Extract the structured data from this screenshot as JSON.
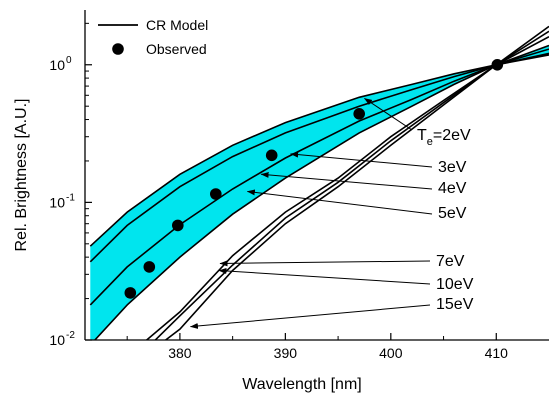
{
  "chart_data": {
    "type": "line",
    "title": "",
    "xlabel": "Wavelength [nm]",
    "ylabel": "Rel. Brightness [A.U.]",
    "xlim": [
      371,
      415
    ],
    "ylim": [
      0.01,
      2.5
    ],
    "yscale": "log",
    "grid": false,
    "legend_position": "top-left",
    "x_ticks": [
      380,
      390,
      400,
      410
    ],
    "x_tick_labels": [
      "380",
      "390",
      "400",
      "410"
    ],
    "y_ticks": [
      0.01,
      0.1,
      1
    ],
    "y_tick_labels": [
      {
        "base": "10",
        "exp": "-2"
      },
      {
        "base": "10",
        "exp": "-1"
      },
      {
        "base": "10",
        "exp": "0"
      }
    ],
    "legend": [
      {
        "label": "CR Model",
        "kind": "line"
      },
      {
        "label": "Observed",
        "kind": "marker"
      }
    ],
    "band": {
      "color": "#00e5ee",
      "upper_curve": "2eV",
      "lower_curve": "5eV"
    },
    "series": [
      {
        "te": "2eV",
        "x": [
          371.5,
          375,
          380,
          385,
          390,
          397,
          402,
          406,
          410,
          415
        ],
        "y": [
          0.048,
          0.085,
          0.16,
          0.26,
          0.38,
          0.58,
          0.72,
          0.86,
          1.0,
          1.18
        ]
      },
      {
        "te": "3eV",
        "x": [
          371.5,
          375,
          380,
          385,
          390,
          397,
          402,
          406,
          410,
          415
        ],
        "y": [
          0.037,
          0.068,
          0.13,
          0.215,
          0.32,
          0.5,
          0.66,
          0.82,
          1.0,
          1.21
        ]
      },
      {
        "te": "4eV",
        "x": [
          371.5,
          375,
          380,
          385,
          390,
          397,
          402,
          406,
          410,
          415
        ],
        "y": [
          0.018,
          0.034,
          0.069,
          0.125,
          0.21,
          0.39,
          0.56,
          0.76,
          1.0,
          1.3
        ]
      },
      {
        "te": "5eV",
        "x": [
          371.5,
          375,
          380,
          385,
          390,
          397,
          402,
          406,
          410,
          415
        ],
        "y": [
          0.0092,
          0.018,
          0.04,
          0.082,
          0.15,
          0.32,
          0.5,
          0.72,
          1.0,
          1.38
        ]
      },
      {
        "te": "7eV",
        "x": [
          376.5,
          380,
          385,
          390,
          395,
          400,
          405,
          410,
          415
        ],
        "y": [
          0.0095,
          0.016,
          0.041,
          0.085,
          0.15,
          0.3,
          0.55,
          1.0,
          1.6
        ]
      },
      {
        "te": "10eV",
        "x": [
          377.5,
          380,
          385,
          390,
          395,
          400,
          405,
          410,
          415
        ],
        "y": [
          0.0097,
          0.015,
          0.035,
          0.077,
          0.14,
          0.28,
          0.53,
          1.0,
          1.75
        ]
      },
      {
        "te": "15eV",
        "x": [
          378.5,
          380,
          385,
          390,
          395,
          400,
          405,
          410,
          415
        ],
        "y": [
          0.0098,
          0.012,
          0.032,
          0.07,
          0.13,
          0.26,
          0.51,
          1.0,
          1.9
        ]
      }
    ],
    "observed": {
      "x": [
        375.3,
        377.1,
        379.8,
        383.4,
        388.7,
        397.0,
        410.1
      ],
      "y": [
        0.022,
        0.034,
        0.068,
        0.115,
        0.22,
        0.44,
        1.0
      ]
    },
    "annotations": [
      {
        "te": "2eV",
        "main": "T",
        "sub": "e",
        "rest": "=2eV",
        "target": [
          397.5,
          0.57
        ]
      },
      {
        "te": "3eV",
        "text": "3eV",
        "target": [
          390.5,
          0.225
        ]
      },
      {
        "te": "4eV",
        "text": "4eV",
        "target": [
          387.7,
          0.16
        ]
      },
      {
        "te": "5eV",
        "text": "5eV",
        "target": [
          386.4,
          0.12
        ]
      },
      {
        "te": "7eV",
        "text": "7eV",
        "target": [
          383.8,
          0.036
        ]
      },
      {
        "te": "10eV",
        "text": "10eV",
        "target": [
          383.7,
          0.032
        ]
      },
      {
        "te": "15eV",
        "text": "15eV",
        "target": [
          381.0,
          0.0125
        ]
      }
    ]
  }
}
